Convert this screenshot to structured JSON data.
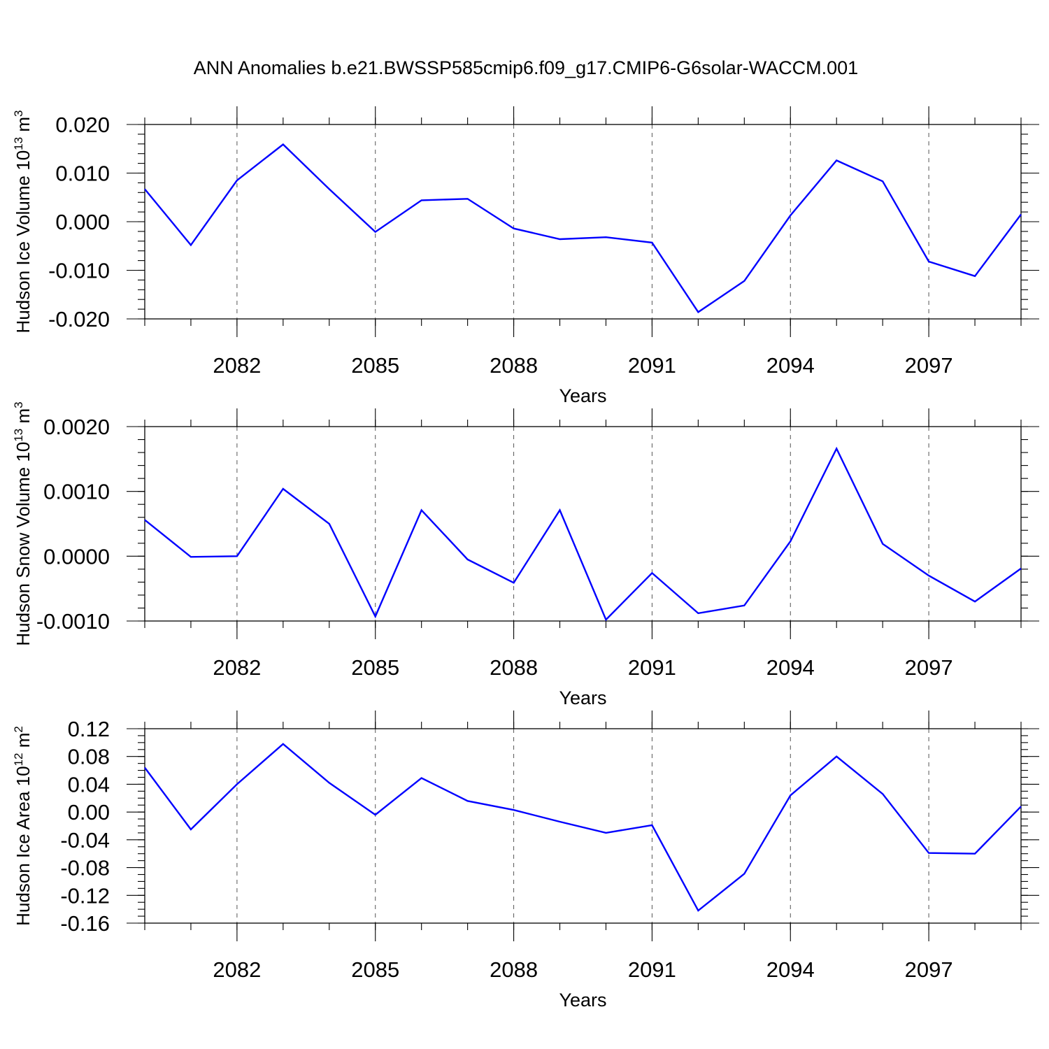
{
  "title": "ANN Anomalies b.e21.BWSSP585cmip6.f09_g17.CMIP6-G6solar-WACCM.001",
  "colors": {
    "series": "#0000ff",
    "grid": "#555555",
    "axis": "#000000"
  },
  "chart_data": [
    {
      "type": "line",
      "ylabel": {
        "main": "Hudson Ice Volume 10",
        "sup": "13",
        "unit": " m",
        "unit_sup": "3"
      },
      "xlabel": "Years",
      "xlim": [
        2080,
        2099
      ],
      "ylim": [
        -0.02,
        0.02
      ],
      "y_ticks": [
        "0.020",
        "0.010",
        "0.000",
        "-0.010",
        "-0.020"
      ],
      "y_tick_values": [
        0.02,
        0.01,
        0.0,
        -0.01,
        -0.02
      ],
      "y_minor_step": 0.002,
      "x_ticks": [
        "2082",
        "2085",
        "2088",
        "2091",
        "2094",
        "2097"
      ],
      "x_tick_values": [
        2082,
        2085,
        2088,
        2091,
        2094,
        2097
      ],
      "grid": "x-dashed",
      "x": [
        2080,
        2081,
        2082,
        2083,
        2084,
        2085,
        2086,
        2087,
        2088,
        2089,
        2090,
        2091,
        2092,
        2093,
        2094,
        2095,
        2096,
        2097,
        2098,
        2099
      ],
      "values": [
        0.0067,
        -0.0048,
        0.0085,
        0.0159,
        0.0067,
        -0.0021,
        0.0044,
        0.0047,
        -0.0014,
        -0.0036,
        -0.0032,
        -0.0043,
        -0.0186,
        -0.0122,
        0.0013,
        0.0126,
        0.0083,
        -0.0082,
        -0.0112,
        0.0015
      ]
    },
    {
      "type": "line",
      "ylabel": {
        "main": "Hudson Snow Volume 10",
        "sup": "13",
        "unit": " m",
        "unit_sup": "3"
      },
      "xlabel": "Years",
      "xlim": [
        2080,
        2099
      ],
      "ylim": [
        -0.001,
        0.002
      ],
      "y_ticks": [
        "0.0020",
        "0.0010",
        "0.0000",
        "-0.0010"
      ],
      "y_tick_values": [
        0.002,
        0.001,
        0.0,
        -0.001
      ],
      "y_minor_step": 0.0002,
      "x_ticks": [
        "2082",
        "2085",
        "2088",
        "2091",
        "2094",
        "2097"
      ],
      "x_tick_values": [
        2082,
        2085,
        2088,
        2091,
        2094,
        2097
      ],
      "grid": "x-dashed",
      "x": [
        2080,
        2081,
        2082,
        2083,
        2084,
        2085,
        2086,
        2087,
        2088,
        2089,
        2090,
        2091,
        2092,
        2093,
        2094,
        2095,
        2096,
        2097,
        2098,
        2099
      ],
      "values": [
        0.00056,
        -1e-05,
        0.0,
        0.00104,
        0.0005,
        -0.00093,
        0.00071,
        -5e-05,
        -0.00041,
        0.00071,
        -0.00098,
        -0.00026,
        -0.00088,
        -0.00076,
        0.00023,
        0.00166,
        0.00019,
        -0.0003,
        -0.0007,
        -0.00019
      ]
    },
    {
      "type": "line",
      "ylabel": {
        "main": "Hudson Ice Area 10",
        "sup": "12",
        "unit": " m",
        "unit_sup": "2"
      },
      "xlabel": "Years",
      "xlim": [
        2080,
        2099
      ],
      "ylim": [
        -0.16,
        0.12
      ],
      "y_ticks": [
        "0.12",
        "0.08",
        "0.04",
        "0.00",
        "-0.04",
        "-0.08",
        "-0.12",
        "-0.16"
      ],
      "y_tick_values": [
        0.12,
        0.08,
        0.04,
        0.0,
        -0.04,
        -0.08,
        -0.12,
        -0.16
      ],
      "y_minor_step": 0.01,
      "x_ticks": [
        "2082",
        "2085",
        "2088",
        "2091",
        "2094",
        "2097"
      ],
      "x_tick_values": [
        2082,
        2085,
        2088,
        2091,
        2094,
        2097
      ],
      "grid": "x-dashed",
      "x": [
        2080,
        2081,
        2082,
        2083,
        2084,
        2085,
        2086,
        2087,
        2088,
        2089,
        2090,
        2091,
        2092,
        2093,
        2094,
        2095,
        2096,
        2097,
        2098,
        2099
      ],
      "values": [
        0.064,
        -0.025,
        0.04,
        0.098,
        0.042,
        -0.004,
        0.049,
        0.016,
        0.003,
        -0.014,
        -0.03,
        -0.019,
        -0.142,
        -0.089,
        0.024,
        0.08,
        0.026,
        -0.059,
        -0.06,
        0.008
      ]
    }
  ]
}
